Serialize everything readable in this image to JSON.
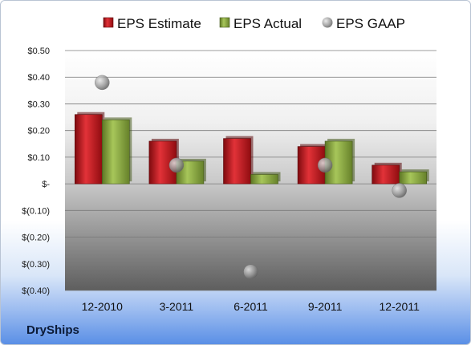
{
  "company": "DryShips",
  "chart_data": {
    "type": "bar",
    "categories": [
      "12-2010",
      "3-2011",
      "6-2011",
      "9-2011",
      "12-2011"
    ],
    "series": [
      {
        "name": "EPS Estimate",
        "kind": "bar",
        "values": [
          0.26,
          0.16,
          0.17,
          0.14,
          0.07
        ],
        "color": "#c0161c"
      },
      {
        "name": "EPS Actual",
        "kind": "bar",
        "values": [
          0.24,
          0.085,
          0.035,
          0.16,
          0.045
        ],
        "color": "#8faf3f"
      },
      {
        "name": "EPS GAAP",
        "kind": "scatter",
        "values": [
          0.38,
          0.07,
          -0.33,
          0.07,
          -0.025
        ],
        "color": "#a0a0a0"
      }
    ],
    "y_ticks": [
      {
        "value": 0.5,
        "label": "$0.50"
      },
      {
        "value": 0.4,
        "label": "$0.40"
      },
      {
        "value": 0.3,
        "label": "$0.30"
      },
      {
        "value": 0.2,
        "label": "$0.20"
      },
      {
        "value": 0.1,
        "label": "$0.10"
      },
      {
        "value": 0,
        "label": "$-"
      },
      {
        "value": -0.1,
        "label": "$(0.10)"
      },
      {
        "value": -0.2,
        "label": "$(0.20)"
      },
      {
        "value": -0.3,
        "label": "$(0.30)"
      },
      {
        "value": -0.4,
        "label": "$(0.40)"
      }
    ],
    "ylim": [
      -0.4,
      0.5
    ],
    "grid": true,
    "legend": "top"
  }
}
